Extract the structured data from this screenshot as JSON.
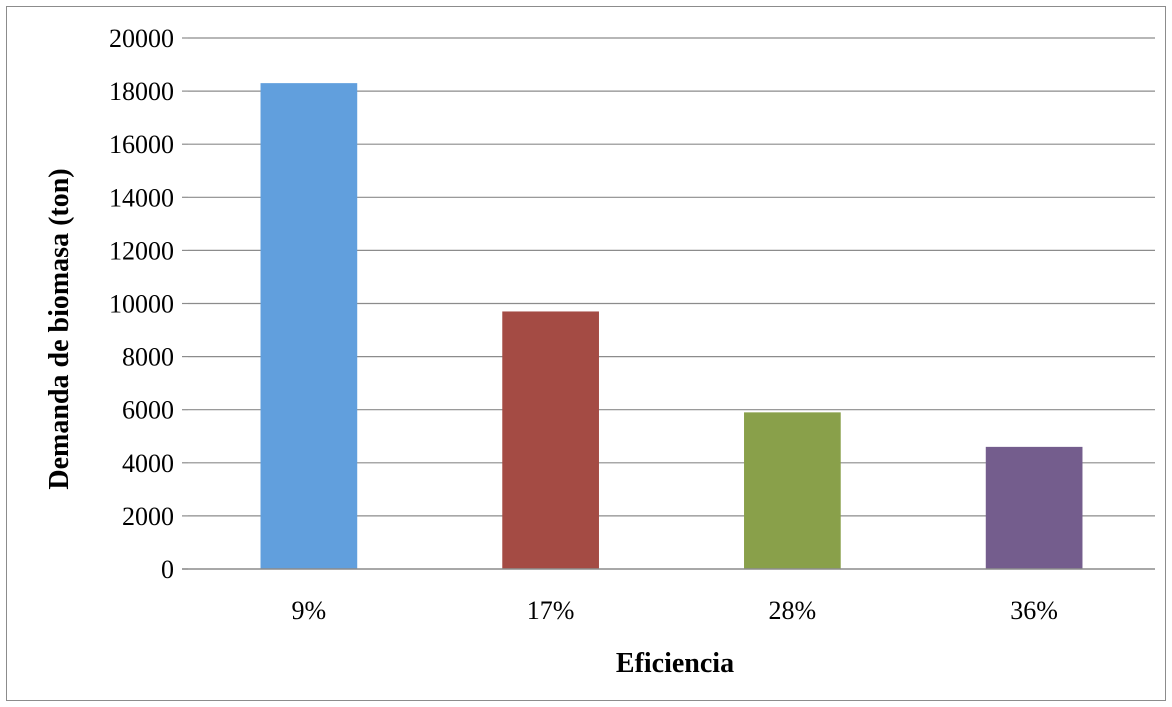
{
  "chart_data": {
    "type": "bar",
    "title": "",
    "xlabel": "Eficiencia",
    "ylabel": "Demanda de biomasa (ton)",
    "categories": [
      "9%",
      "17%",
      "28%",
      "36%"
    ],
    "values": [
      18300,
      9700,
      5900,
      4600
    ],
    "colors": [
      "#619FDD",
      "#A44B44",
      "#89A04A",
      "#745D8D"
    ],
    "ylim": [
      0,
      20000
    ],
    "yticks": [
      0,
      2000,
      4000,
      6000,
      8000,
      10000,
      12000,
      14000,
      16000,
      18000,
      20000
    ],
    "grid": true,
    "legend": "none"
  }
}
